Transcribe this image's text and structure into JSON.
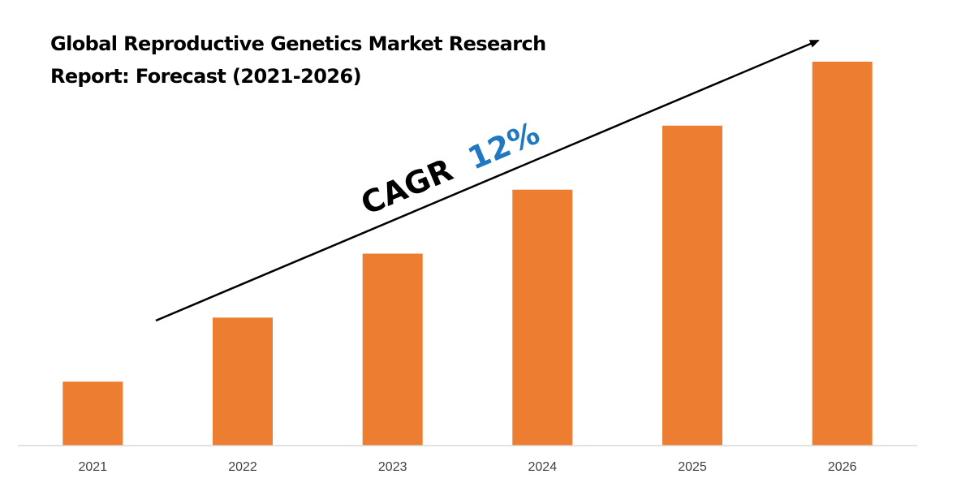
{
  "chart_data": {
    "type": "bar",
    "title": "Global Reproductive Genetics Market Research Report: Forecast (2021-2026)",
    "categories": [
      "2021",
      "2022",
      "2023",
      "2024",
      "2025",
      "2026"
    ],
    "values": [
      1,
      2,
      3,
      4,
      5,
      6
    ],
    "ylim": [
      0,
      6
    ],
    "y_axis_visible": false,
    "grid": false,
    "legend": "none",
    "bar_color": "#ED7D31",
    "annotation": {
      "label": "CAGR",
      "value": "12%",
      "label_color": "#000000",
      "value_color": "#1F78C1",
      "arrow": "trend-up"
    }
  }
}
